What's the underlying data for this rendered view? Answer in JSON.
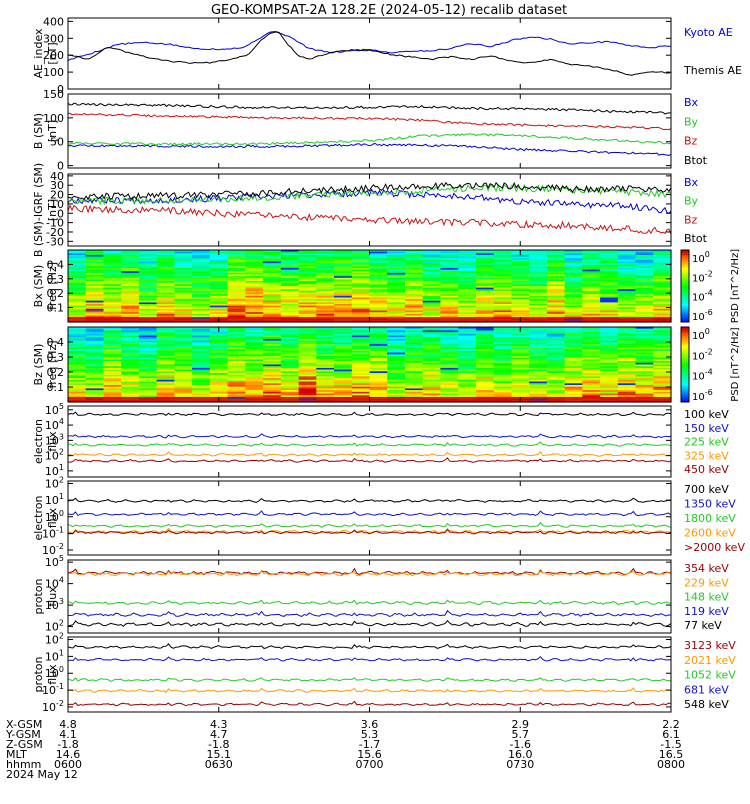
{
  "title": "GEO-KOMPSAT-2A 128.2E (2024-05-12) recalib dataset",
  "colors": {
    "black": "#000000",
    "blue": "#0000dd",
    "green": "#22cc22",
    "red": "#cc1111",
    "orange": "#ff9900",
    "darkred": "#990000",
    "navy": "#1111cc"
  },
  "colorbar": {
    "ticks": [
      "10^0",
      "10^-2",
      "10^-4",
      "10^-6"
    ],
    "label": "PSD [nT^2/Hz]"
  },
  "xaxis": {
    "row_labels": [
      "X-GSM",
      "Y-GSM",
      "Z-GSM",
      "MLT",
      "hhmm"
    ],
    "date": "2024 May 12",
    "columns": [
      [
        "4.8",
        "4.1",
        "-1.8",
        "14.6",
        "0600"
      ],
      [
        "4.3",
        "4.7",
        "-1.8",
        "15.1",
        "0630"
      ],
      [
        "3.6",
        "5.3",
        "-1.7",
        "15.6",
        "0700"
      ],
      [
        "2.9",
        "5.7",
        "-1.6",
        "16.0",
        "0730"
      ],
      [
        "2.2",
        "6.1",
        "-1.5",
        "16.5",
        "0800"
      ]
    ]
  },
  "chart_data": [
    {
      "id": "ae",
      "type": "line",
      "ylabel": [
        "AE_index",
        "[nT]"
      ],
      "ylim": [
        0,
        420
      ],
      "yticks": [
        "400",
        "300",
        "200",
        "100",
        "0"
      ],
      "ytick_values": [
        400,
        300,
        200,
        100,
        0
      ],
      "series": [
        {
          "name": "Kyoto AE",
          "color": "#0000dd",
          "points": [
            [
              0,
              170
            ],
            [
              5,
              215
            ],
            [
              10,
              265
            ],
            [
              15,
              275
            ],
            [
              20,
              265
            ],
            [
              25,
              240
            ],
            [
              30,
              235
            ],
            [
              35,
              245
            ],
            [
              38,
              300
            ],
            [
              41,
              345
            ],
            [
              44,
              310
            ],
            [
              48,
              240
            ],
            [
              52,
              215
            ],
            [
              56,
              225
            ],
            [
              60,
              235
            ],
            [
              64,
              215
            ],
            [
              68,
              225
            ],
            [
              72,
              225
            ],
            [
              76,
              240
            ],
            [
              80,
              270
            ],
            [
              84,
              250
            ],
            [
              88,
              285
            ],
            [
              92,
              310
            ],
            [
              96,
              295
            ],
            [
              100,
              265
            ],
            [
              104,
              275
            ],
            [
              108,
              280
            ],
            [
              112,
              255
            ],
            [
              116,
              245
            ],
            [
              120,
              255
            ]
          ]
        },
        {
          "name": "Themis AE",
          "color": "#000000",
          "points": [
            [
              0,
              205
            ],
            [
              4,
              175
            ],
            [
              8,
              250
            ],
            [
              12,
              215
            ],
            [
              16,
              185
            ],
            [
              20,
              165
            ],
            [
              24,
              155
            ],
            [
              28,
              155
            ],
            [
              32,
              175
            ],
            [
              36,
              205
            ],
            [
              38,
              275
            ],
            [
              40,
              330
            ],
            [
              42,
              335
            ],
            [
              44,
              255
            ],
            [
              46,
              195
            ],
            [
              48,
              175
            ],
            [
              52,
              215
            ],
            [
              56,
              230
            ],
            [
              60,
              230
            ],
            [
              64,
              205
            ],
            [
              68,
              190
            ],
            [
              72,
              175
            ],
            [
              76,
              190
            ],
            [
              80,
              175
            ],
            [
              84,
              195
            ],
            [
              88,
              165
            ],
            [
              92,
              155
            ],
            [
              96,
              175
            ],
            [
              100,
              145
            ],
            [
              104,
              135
            ],
            [
              108,
              115
            ],
            [
              112,
              80
            ],
            [
              116,
              105
            ],
            [
              120,
              95
            ]
          ]
        }
      ]
    },
    {
      "id": "bsm",
      "type": "line",
      "ylabel": [
        "B (SM)",
        "[nT]"
      ],
      "ylim": [
        -5,
        150
      ],
      "yticks": [
        "150",
        "100",
        "50",
        "0"
      ],
      "ytick_values": [
        150,
        100,
        50,
        0
      ],
      "series": [
        {
          "name": "Bx",
          "color": "#0000dd",
          "points": [
            [
              0,
              42
            ],
            [
              20,
              41
            ],
            [
              40,
              40
            ],
            [
              60,
              44
            ],
            [
              70,
              43
            ],
            [
              80,
              40
            ],
            [
              90,
              34
            ],
            [
              100,
              30
            ],
            [
              110,
              27
            ],
            [
              120,
              23
            ]
          ]
        },
        {
          "name": "By",
          "color": "#22cc22",
          "points": [
            [
              0,
              47
            ],
            [
              20,
              45
            ],
            [
              40,
              46
            ],
            [
              60,
              52
            ],
            [
              70,
              62
            ],
            [
              80,
              65
            ],
            [
              90,
              63
            ],
            [
              100,
              58
            ],
            [
              110,
              52
            ],
            [
              120,
              47
            ]
          ]
        },
        {
          "name": "Bz",
          "color": "#cc1111",
          "points": [
            [
              0,
              108
            ],
            [
              20,
              104
            ],
            [
              40,
              100
            ],
            [
              60,
              99
            ],
            [
              70,
              95
            ],
            [
              80,
              88
            ],
            [
              90,
              85
            ],
            [
              100,
              83
            ],
            [
              110,
              81
            ],
            [
              120,
              77
            ]
          ]
        },
        {
          "name": "Btot",
          "color": "#000000",
          "points": [
            [
              0,
              129
            ],
            [
              20,
              126
            ],
            [
              40,
              121
            ],
            [
              60,
              122
            ],
            [
              70,
              124
            ],
            [
              80,
              120
            ],
            [
              90,
              119
            ],
            [
              100,
              117
            ],
            [
              110,
              113
            ],
            [
              120,
              110
            ]
          ]
        }
      ]
    },
    {
      "id": "bdiff",
      "type": "line",
      "ylabel": [
        "B (SM)-IGRF (SM)",
        "[nT]"
      ],
      "ylim": [
        -35,
        42
      ],
      "yticks": [
        "40",
        "30",
        "20",
        "10",
        "0",
        "-10",
        "-20",
        "-30"
      ],
      "ytick_values": [
        40,
        30,
        20,
        10,
        0,
        -10,
        -20,
        -30
      ],
      "series": [
        {
          "name": "Bx",
          "color": "#0000dd",
          "points": [
            [
              0,
              14
            ],
            [
              20,
              14
            ],
            [
              40,
              18
            ],
            [
              60,
              22
            ],
            [
              70,
              20
            ],
            [
              80,
              18
            ],
            [
              90,
              12
            ],
            [
              100,
              10
            ],
            [
              110,
              8
            ],
            [
              120,
              3
            ]
          ]
        },
        {
          "name": "By",
          "color": "#22cc22",
          "points": [
            [
              0,
              13
            ],
            [
              20,
              14
            ],
            [
              40,
              17
            ],
            [
              60,
              22
            ],
            [
              70,
              24
            ],
            [
              80,
              27
            ],
            [
              90,
              27
            ],
            [
              100,
              25
            ],
            [
              110,
              23
            ],
            [
              120,
              20
            ]
          ]
        },
        {
          "name": "Bz",
          "color": "#cc1111",
          "points": [
            [
              0,
              5
            ],
            [
              20,
              3
            ],
            [
              40,
              -3
            ],
            [
              60,
              -7
            ],
            [
              70,
              -9
            ],
            [
              80,
              -10
            ],
            [
              90,
              -12
            ],
            [
              100,
              -13
            ],
            [
              110,
              -16
            ],
            [
              120,
              -20
            ]
          ]
        },
        {
          "name": "Btot",
          "color": "#000000",
          "points": [
            [
              0,
              18
            ],
            [
              20,
              19
            ],
            [
              40,
              22
            ],
            [
              60,
              27
            ],
            [
              70,
              29
            ],
            [
              80,
              30
            ],
            [
              90,
              29
            ],
            [
              100,
              26
            ],
            [
              110,
              26
            ],
            [
              120,
              26
            ]
          ]
        }
      ]
    },
    {
      "id": "bxspec",
      "type": "heatmap",
      "ylabel": [
        "Bx (SM)",
        "freq [Hz]"
      ],
      "ylim": [
        0,
        0.5
      ],
      "yticks": [
        "0.4",
        "0.3",
        "0.2",
        "0.1"
      ],
      "ytick_values": [
        0.4,
        0.3,
        0.2,
        0.1
      ],
      "seed": 7
    },
    {
      "id": "bzspec",
      "type": "heatmap",
      "ylabel": [
        "Bz (SM)",
        "freq [Hz]"
      ],
      "ylim": [
        0,
        0.5
      ],
      "yticks": [
        "0.4",
        "0.3",
        "0.2",
        "0.1"
      ],
      "ytick_values": [
        0.4,
        0.3,
        0.2,
        0.1
      ],
      "seed": 19
    },
    {
      "id": "eflux1",
      "type": "line",
      "log": true,
      "ylabel": [
        "electron",
        "flux"
      ],
      "ylim_log": [
        0.6,
        5.25
      ],
      "yticks": [
        "10^5",
        "10^4",
        "10^3",
        "10^2",
        "10^1"
      ],
      "ytick_values": [
        5,
        4,
        3,
        2,
        1
      ],
      "series": [
        {
          "name": "100 keV",
          "color": "#000000",
          "level": 4.7
        },
        {
          "name": "150 keV",
          "color": "#1111cc",
          "level": 3.25
        },
        {
          "name": "225 keV",
          "color": "#22cc22",
          "level": 2.7
        },
        {
          "name": "325 keV",
          "color": "#ff9900",
          "level": 2.05
        },
        {
          "name": "450 keV",
          "color": "#990000",
          "level": 1.65
        }
      ]
    },
    {
      "id": "eflux2",
      "type": "line",
      "log": true,
      "ylabel": [
        "electron",
        "flux"
      ],
      "ylim_log": [
        -2.3,
        2.15
      ],
      "yticks": [
        "10^2",
        "10^1",
        "10^0",
        "10^-1",
        "10^-2"
      ],
      "ytick_values": [
        2,
        1,
        0,
        -1,
        -2
      ],
      "series": [
        {
          "name": "700 keV",
          "color": "#000000",
          "level": 0.95
        },
        {
          "name": "1350 keV",
          "color": "#1111cc",
          "level": 0.15
        },
        {
          "name": "1800 keV",
          "color": "#22cc22",
          "level": -0.55
        },
        {
          "name": "2600 keV",
          "color": "#ff9900",
          "level": -0.9
        },
        {
          "name": ">2000 keV",
          "color": "#990000",
          "level": -0.95
        }
      ]
    },
    {
      "id": "pflux1",
      "type": "line",
      "log": true,
      "ylabel": [
        "proton",
        "flux"
      ],
      "ylim_log": [
        1.7,
        5.1
      ],
      "yticks": [
        "10^5",
        "10^4",
        "10^3",
        "10^2"
      ],
      "ytick_values": [
        5,
        4,
        3,
        2
      ],
      "series": [
        {
          "name": "354 keV",
          "color": "#990000",
          "level": 4.5
        },
        {
          "name": "229 keV",
          "color": "#ff9900",
          "level": 4.45
        },
        {
          "name": "148 keV",
          "color": "#22cc22",
          "level": 3.1
        },
        {
          "name": "119 keV",
          "color": "#1111cc",
          "level": 2.55
        },
        {
          "name": "77 keV",
          "color": "#000000",
          "level": 2.1
        }
      ]
    },
    {
      "id": "pflux2",
      "type": "line",
      "log": true,
      "ylabel": [
        "proton",
        "flux"
      ],
      "ylim_log": [
        -2.3,
        2.15
      ],
      "yticks": [
        "10^2",
        "10^1",
        "10^0",
        "10^-1",
        "10^-2"
      ],
      "ytick_values": [
        2,
        1,
        0,
        -1,
        -2
      ],
      "series": [
        {
          "name": "3123 keV",
          "color": "#990000",
          "level": -1.85
        },
        {
          "name": "2021 keV",
          "color": "#ff9900",
          "level": -1.05
        },
        {
          "name": "1052 keV",
          "color": "#22cc22",
          "level": -0.4
        },
        {
          "name": "681 keV",
          "color": "#1111cc",
          "level": 0.8
        },
        {
          "name": "548 keV",
          "color": "#000000",
          "level": 1.55
        }
      ]
    }
  ]
}
